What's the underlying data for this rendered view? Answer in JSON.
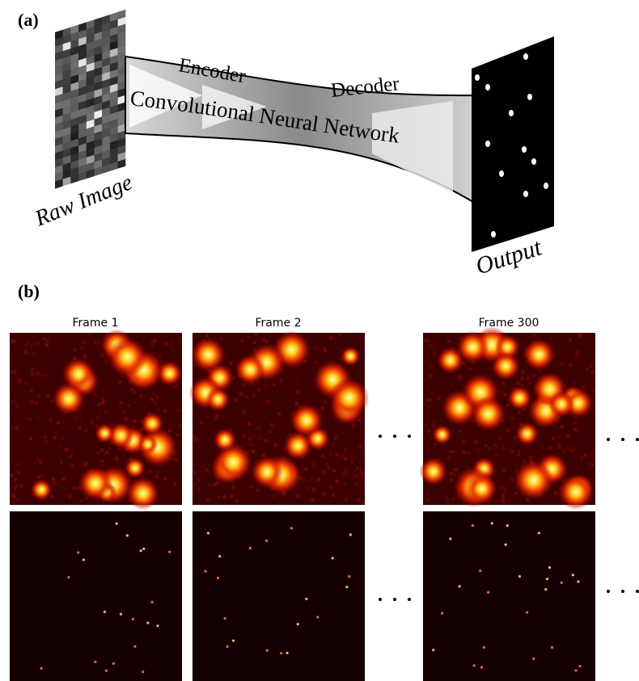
{
  "panel_a": {
    "label": "(a)",
    "input": "Raw Image",
    "encoder": "Encoder",
    "decoder": "Decoder",
    "network": "Convolutional Neural Network",
    "output": "Output"
  },
  "panel_b": {
    "label": "(b)",
    "frames": [
      "Frame 1",
      "Frame 2",
      "Frame 300"
    ]
  }
}
